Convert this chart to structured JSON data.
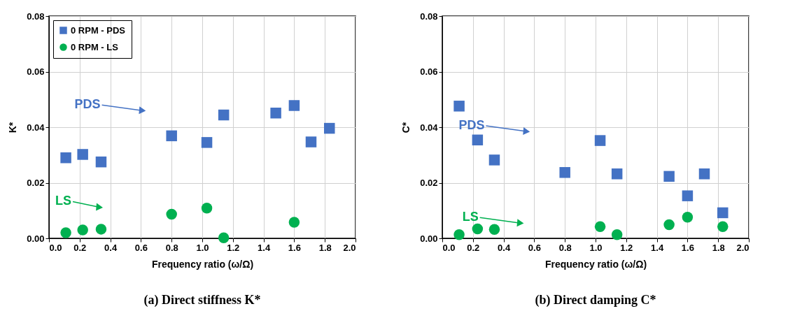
{
  "chart_data": [
    {
      "type": "scatter",
      "title": "(a)  Direct stiffness K*",
      "xlabel": "Frequency ratio (ω/Ω)",
      "ylabel": "K*",
      "xlim": [
        0,
        2
      ],
      "xticks": [
        {
          "value": 0,
          "label": "0.0"
        },
        {
          "value": 0.2,
          "label": "0.2"
        },
        {
          "value": 0.4,
          "label": "0.4"
        },
        {
          "value": 0.6,
          "label": "0.6"
        },
        {
          "value": 0.8,
          "label": "0.8"
        },
        {
          "value": 1,
          "label": "1.0"
        },
        {
          "value": 1.2,
          "label": "1.2"
        },
        {
          "value": 1.4,
          "label": "1.4"
        },
        {
          "value": 1.6,
          "label": "1.6"
        },
        {
          "value": 1.8,
          "label": "1.8"
        },
        {
          "value": 2,
          "label": "2.0"
        }
      ],
      "ylim": [
        0,
        0.08
      ],
      "yticks": [
        {
          "value": 0,
          "label": "0.00"
        },
        {
          "value": 0.02,
          "label": "0.02"
        },
        {
          "value": 0.04,
          "label": "0.04"
        },
        {
          "value": 0.06,
          "label": "0.06"
        },
        {
          "value": 0.08,
          "label": "0.08"
        }
      ],
      "grid": true,
      "legend": "top left",
      "series": [
        {
          "name": "0 RPM - PDS",
          "color": "#4472c4",
          "marker": "square",
          "x": [
            0.11,
            0.22,
            0.34,
            0.8,
            1.03,
            1.14,
            1.48,
            1.6,
            1.71,
            1.83
          ],
          "values": [
            0.029,
            0.0302,
            0.0275,
            0.0369,
            0.0345,
            0.0444,
            0.0451,
            0.0478,
            0.0347,
            0.0396
          ]
        },
        {
          "name": "0 RPM - LS",
          "color": "#00b050",
          "marker": "circle",
          "x": [
            0.11,
            0.22,
            0.34,
            0.8,
            1.03,
            1.14,
            1.6
          ],
          "values": [
            0.002,
            0.003,
            0.0033,
            0.0087,
            0.0109,
            0.0002,
            0.0058
          ]
        }
      ],
      "annotations": [
        {
          "text": "PDS",
          "x": 0.61,
          "y": 0.046
        },
        {
          "text": "LS",
          "x": 0.33,
          "y": 0.0112
        }
      ]
    },
    {
      "type": "scatter",
      "title": "(b) Direct damping C*",
      "xlabel": "Frequency ratio (ω/Ω)",
      "ylabel": "C*",
      "xlim": [
        0,
        2
      ],
      "xticks": [
        {
          "value": 0,
          "label": "0.0"
        },
        {
          "value": 0.2,
          "label": "0.2"
        },
        {
          "value": 0.4,
          "label": "0.4"
        },
        {
          "value": 0.6,
          "label": "0.6"
        },
        {
          "value": 0.8,
          "label": "0.8"
        },
        {
          "value": 1,
          "label": "1.0"
        },
        {
          "value": 1.2,
          "label": "1.2"
        },
        {
          "value": 1.4,
          "label": "1.4"
        },
        {
          "value": 1.6,
          "label": "1.6"
        },
        {
          "value": 1.8,
          "label": "1.8"
        },
        {
          "value": 2,
          "label": "2.0"
        }
      ],
      "ylim": [
        0,
        0.08
      ],
      "yticks": [
        {
          "value": 0,
          "label": "0.00"
        },
        {
          "value": 0.02,
          "label": "0.02"
        },
        {
          "value": 0.04,
          "label": "0.04"
        },
        {
          "value": 0.06,
          "label": "0.06"
        },
        {
          "value": 0.08,
          "label": "0.08"
        }
      ],
      "grid": true,
      "legend": "top left",
      "series": [
        {
          "name": "0 RPM - PDS",
          "color": "#4472c4",
          "marker": "square",
          "x": [
            0.11,
            0.23,
            0.34,
            0.8,
            1.03,
            1.14,
            1.48,
            1.6,
            1.71,
            1.83
          ],
          "values": [
            0.0476,
            0.0354,
            0.0282,
            0.0237,
            0.0352,
            0.0232,
            0.0223,
            0.0153,
            0.0232,
            0.0092
          ]
        },
        {
          "name": "0 RPM - LS",
          "color": "#00b050",
          "marker": "circle",
          "x": [
            0.11,
            0.23,
            0.34,
            1.03,
            1.14,
            1.48,
            1.6,
            1.83
          ],
          "values": [
            0.0013,
            0.0034,
            0.0032,
            0.0042,
            0.0013,
            0.0049,
            0.0076,
            0.0042
          ]
        }
      ],
      "annotations": [
        {
          "text": "PDS",
          "x": 0.55,
          "y": 0.0385
        },
        {
          "text": "LS",
          "x": 0.51,
          "y": 0.0055
        }
      ]
    }
  ]
}
